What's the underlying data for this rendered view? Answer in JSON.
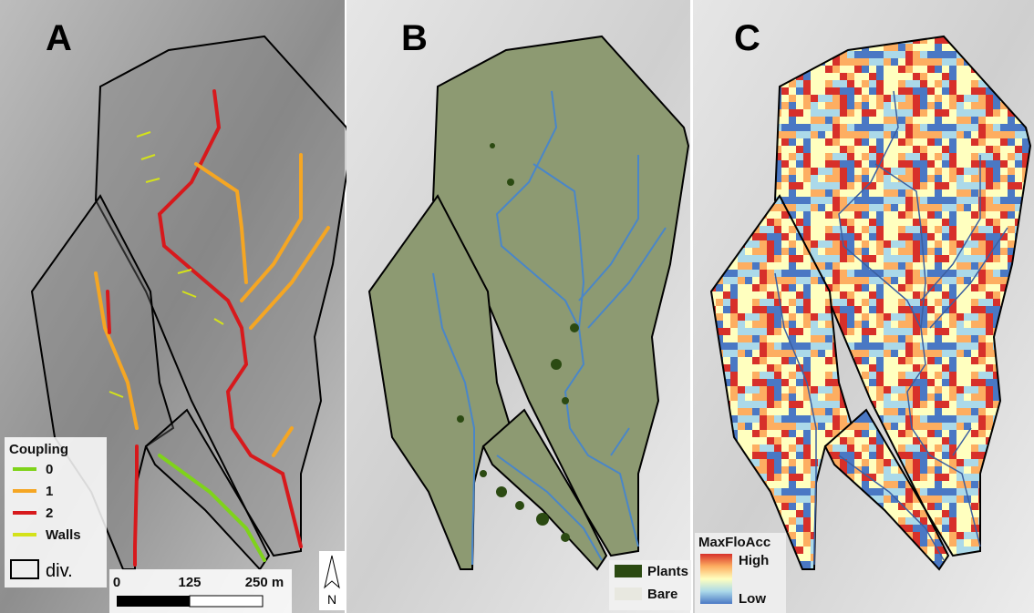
{
  "panels": [
    {
      "label": "A"
    },
    {
      "label": "B"
    },
    {
      "label": "C"
    }
  ],
  "legend_a": {
    "title": "Coupling",
    "items": [
      {
        "label": "0",
        "color": "#7fd31a"
      },
      {
        "label": "1",
        "color": "#f5a623"
      },
      {
        "label": "2",
        "color": "#d7191c"
      },
      {
        "label": "Walls",
        "color": "#d4e21a"
      }
    ],
    "divide": "div."
  },
  "scale_bar": {
    "labels": [
      "0",
      "125",
      "250 m"
    ]
  },
  "north": "N",
  "legend_b": {
    "items": [
      {
        "label": "Plants",
        "color": "#2b4a12"
      },
      {
        "label": "Bare",
        "color": "#e8e8e0"
      }
    ]
  },
  "legend_c": {
    "title": "MaxFloAcc",
    "high": "High",
    "low": "Low",
    "colors": [
      "#d7302a",
      "#fdae61",
      "#ffffbf",
      "#abd9e9",
      "#4a78c4"
    ]
  }
}
